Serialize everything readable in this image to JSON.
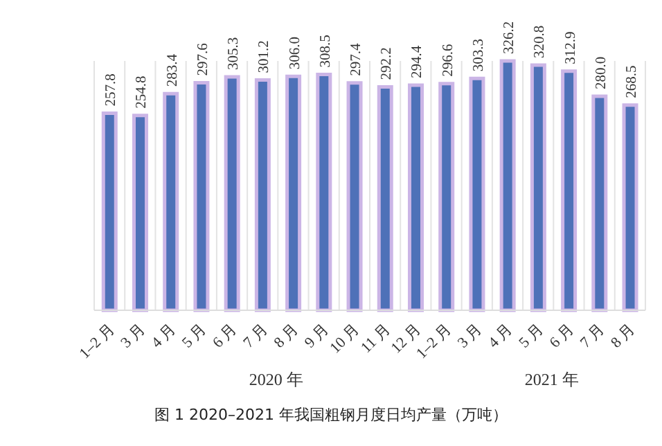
{
  "chart_data": {
    "type": "bar",
    "title": "图 1 2020–2021 年我国粗钢月度日均产量（万吨）",
    "categories": [
      "1–2 月",
      "3 月",
      "4 月",
      "5 月",
      "6 月",
      "7 月",
      "8 月",
      "9 月",
      "10 月",
      "11 月",
      "12 月",
      "1–2 月",
      "3 月",
      "4 月",
      "5 月",
      "6 月",
      "7 月",
      "8 月"
    ],
    "values": [
      257.8,
      254.8,
      283.4,
      297.6,
      305.3,
      301.2,
      306.0,
      308.5,
      297.4,
      292.2,
      294.4,
      296.6,
      303.3,
      326.2,
      320.8,
      312.9,
      280.0,
      268.5
    ],
    "value_labels": [
      "257.8",
      "254.8",
      "283.4",
      "297.6",
      "305.3",
      "301.2",
      "306.0",
      "308.5",
      "297.4",
      "292.2",
      "294.4",
      "296.6",
      "303.3",
      "326.2",
      "320.8",
      "312.9",
      "280.0",
      "268.5"
    ],
    "color": "#4e71b8",
    "grid": "x",
    "annotations": [
      "2020 年",
      "2021 年"
    ]
  }
}
